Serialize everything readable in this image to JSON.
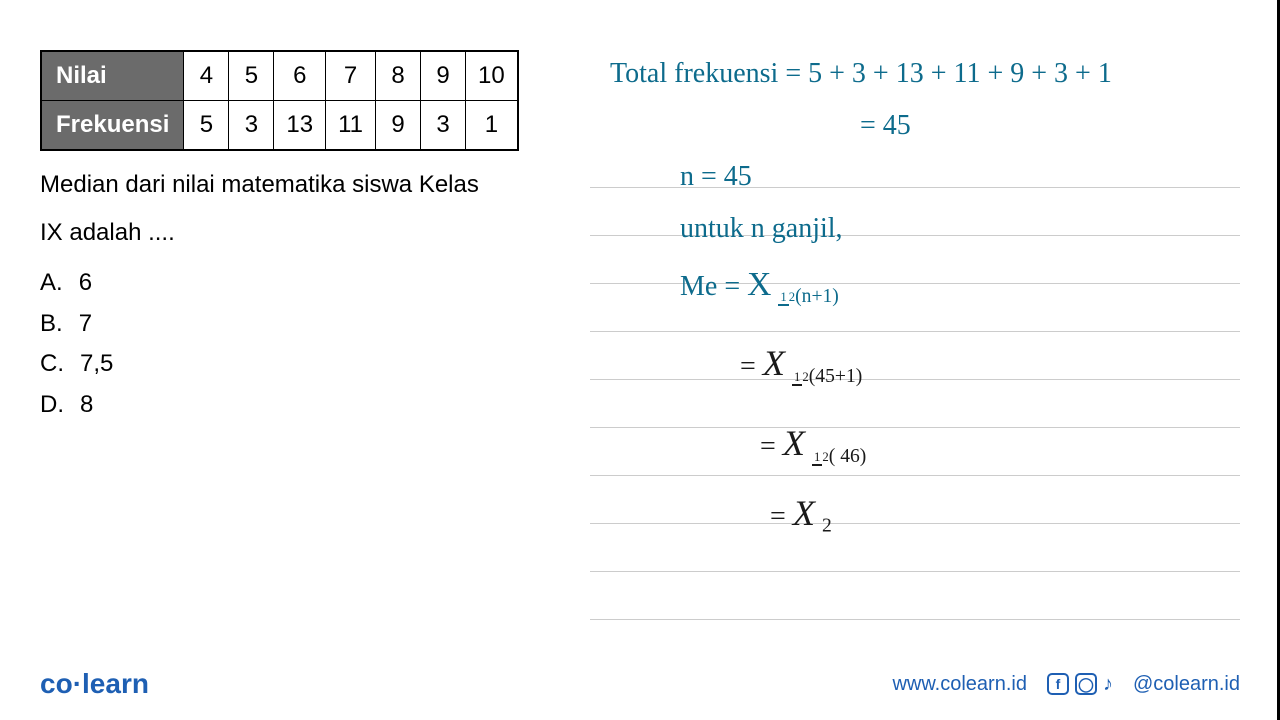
{
  "table": {
    "row1_label": "Nilai",
    "row2_label": "Frekuensi",
    "nilai": [
      "4",
      "5",
      "6",
      "7",
      "8",
      "9",
      "10"
    ],
    "frekuensi": [
      "5",
      "3",
      "13",
      "11",
      "9",
      "3",
      "1"
    ]
  },
  "question": {
    "line1": "Median dari nilai matematika siswa Kelas",
    "line2": "IX adalah ...."
  },
  "options": {
    "a_label": "A.",
    "a_value": "6",
    "b_label": "B.",
    "b_value": "7",
    "c_label": "C.",
    "c_value": "7,5",
    "d_label": "D.",
    "d_value": "8"
  },
  "work": {
    "line1": "Total frekuensi = 5 + 3 + 13 + 11 + 9 + 3 + 1",
    "line2": "= 45",
    "line3": "n = 45",
    "line4": "untuk n ganjil,",
    "line5_me": "Me =",
    "line5_x": "X",
    "line5_sub": "(n+1)",
    "line6_eq": "=",
    "line6_x": "X",
    "line6_sub": "(45+1)",
    "line7_eq": "=",
    "line7_x": "X",
    "line7_sub": "( 46)",
    "line8_eq": "=",
    "line8_x": "X",
    "line8_sub": "2"
  },
  "footer": {
    "logo_co": "co",
    "logo_learn": "learn",
    "url": "www.colearn.id",
    "handle": "@colearn.id"
  },
  "colors": {
    "handwriting_blue": "#0d6b8c",
    "handwriting_black": "#1a1a1a",
    "brand_blue": "#1e5fb3",
    "table_header_bg": "#6b6b6b"
  }
}
